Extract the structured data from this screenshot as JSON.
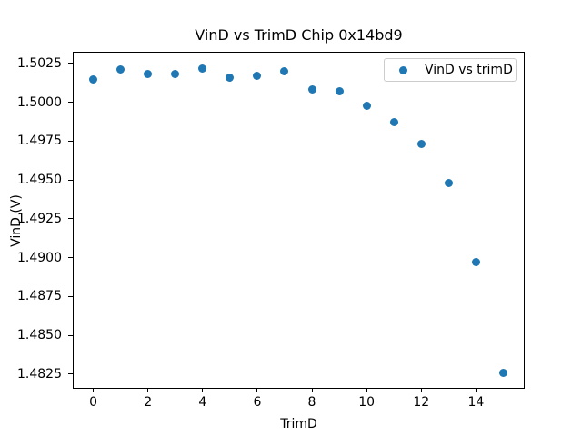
{
  "window": {
    "background": "#ffffff"
  },
  "chart_data": {
    "type": "scatter",
    "title": "VinD vs TrimD Chip 0x14bd9",
    "xlabel": "TrimD",
    "ylabel": "VinD (V)",
    "series": [
      {
        "name": "VinD vs trimD",
        "color": "#1f77b4",
        "x": [
          0,
          1,
          2,
          3,
          4,
          5,
          6,
          7,
          8,
          9,
          10,
          11,
          12,
          13,
          14,
          15
        ],
        "y": [
          1.5015,
          1.5021,
          1.5018,
          1.5018,
          1.5022,
          1.5016,
          1.5017,
          1.502,
          1.5008,
          1.5007,
          1.4998,
          1.4987,
          1.4973,
          1.4948,
          1.4897,
          1.4826
        ]
      }
    ],
    "xlim": [
      -0.75,
      15.75
    ],
    "ylim": [
      1.4816,
      1.50322
    ],
    "xticks": [
      "0",
      "2",
      "4",
      "6",
      "8",
      "10",
      "12",
      "14"
    ],
    "yticks": [
      "1.4825",
      "1.4850",
      "1.4875",
      "1.4900",
      "1.4925",
      "1.4950",
      "1.4975",
      "1.5000",
      "1.5025"
    ],
    "grid": false,
    "legend": {
      "label": "VinD vs trimD",
      "position": "upper right"
    }
  }
}
